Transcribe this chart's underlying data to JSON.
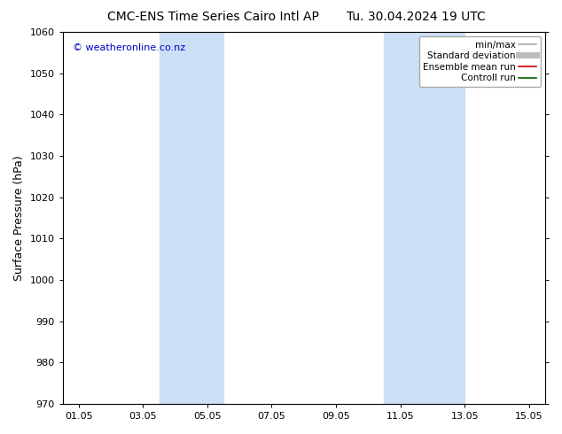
{
  "title_left": "CMC-ENS Time Series Cairo Intl AP",
  "title_right": "Tu. 30.04.2024 19 UTC",
  "ylabel": "Surface Pressure (hPa)",
  "ylim": [
    970,
    1060
  ],
  "yticks": [
    970,
    980,
    990,
    1000,
    1010,
    1020,
    1030,
    1040,
    1050,
    1060
  ],
  "xtick_labels": [
    "01.05",
    "03.05",
    "05.05",
    "07.05",
    "09.05",
    "11.05",
    "13.05",
    "15.05"
  ],
  "xtick_positions": [
    1,
    3,
    5,
    7,
    9,
    11,
    13,
    15
  ],
  "xlim": [
    0.5,
    15.5
  ],
  "shade_regions": [
    {
      "x_start": 3.5,
      "x_end": 5.5
    },
    {
      "x_start": 10.5,
      "x_end": 13.0
    }
  ],
  "shade_color": "#cce0f5",
  "watermark_text": "© weatheronline.co.nz",
  "watermark_color": "#0000cc",
  "legend_items": [
    {
      "label": "min/max",
      "color": "#aaaaaa",
      "lw": 1.2
    },
    {
      "label": "Standard deviation",
      "color": "#bbbbbb",
      "lw": 5
    },
    {
      "label": "Ensemble mean run",
      "color": "#cc0000",
      "lw": 1.2
    },
    {
      "label": "Controll run",
      "color": "#006600",
      "lw": 1.2
    }
  ],
  "bg_color": "#ffffff",
  "title_fontsize": 10,
  "ylabel_fontsize": 9,
  "tick_fontsize": 8,
  "watermark_fontsize": 8,
  "legend_fontsize": 7.5
}
